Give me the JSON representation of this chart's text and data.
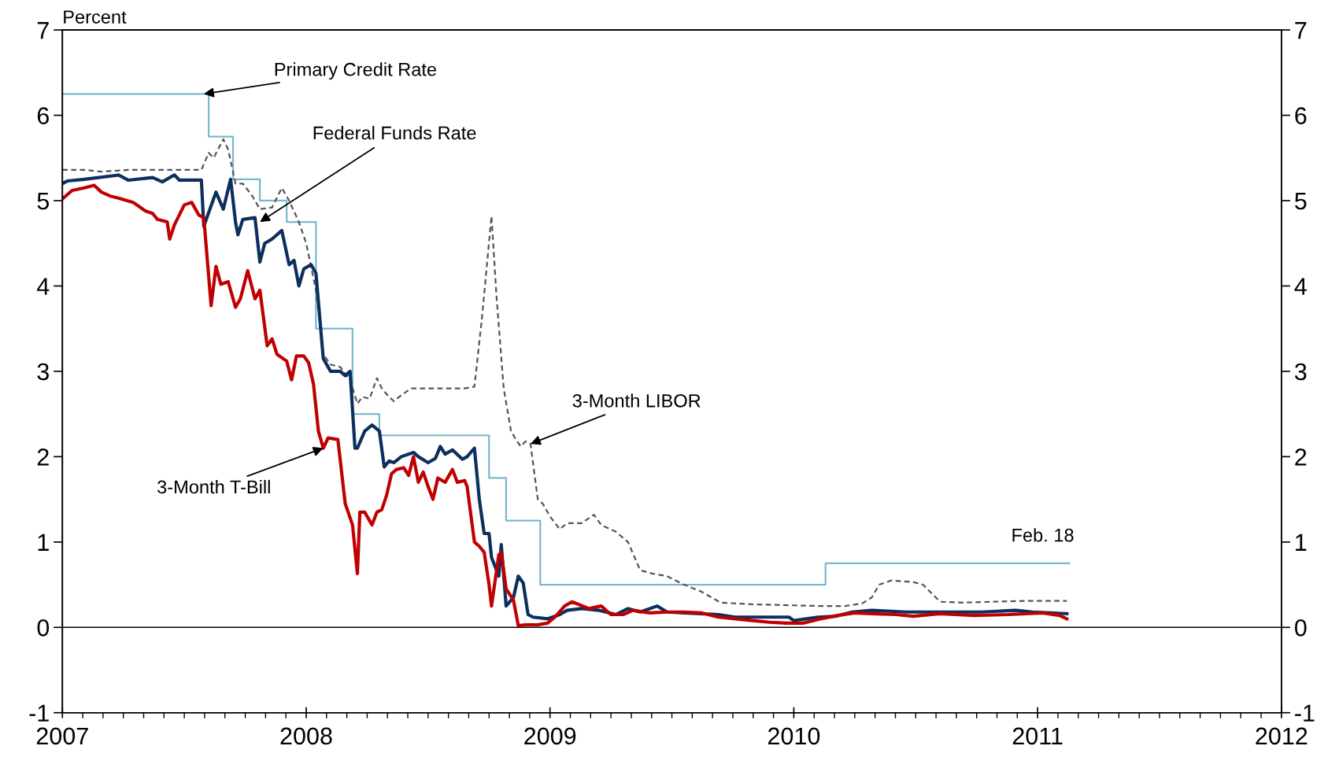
{
  "chart_data": {
    "type": "line",
    "ylabel": "Percent",
    "xlim": [
      2007,
      2012
    ],
    "xticks": [
      2007,
      2008,
      2009,
      2010,
      2011,
      2012
    ],
    "ylim": [
      -1,
      7
    ],
    "yticks": [
      -1,
      0,
      1,
      2,
      3,
      4,
      5,
      6,
      7
    ],
    "y2lim": [
      -1,
      7
    ],
    "y2ticks": [
      -1,
      0,
      1,
      2,
      3,
      4,
      5,
      6,
      7
    ],
    "grid": false,
    "legend": false,
    "marker": "none",
    "ref_lines": [
      {
        "axis": "y",
        "value": 0,
        "color": "#000000"
      }
    ],
    "series": [
      {
        "type": "step",
        "color": "#7ab8d0",
        "x": [
          2007.0,
          2007.6,
          2007.7,
          2007.81,
          2007.92,
          2008.04,
          2008.19,
          2008.3,
          2008.75,
          2008.82,
          2008.96,
          2010.13,
          2011.13
        ],
        "values": [
          6.25,
          5.75,
          5.25,
          5.0,
          4.75,
          3.5,
          2.5,
          2.25,
          1.75,
          1.25,
          0.5,
          0.75,
          0.75
        ]
      },
      {
        "color": "#555555",
        "line_style": "dashed",
        "x": [
          2007.0,
          2007.09,
          2007.16,
          2007.27,
          2007.44,
          2007.57,
          2007.6,
          2007.62,
          2007.66,
          2007.68,
          2007.71,
          2007.74,
          2007.78,
          2007.81,
          2007.86,
          2007.9,
          2007.93,
          2007.97,
          2008.0,
          2008.04,
          2008.07,
          2008.1,
          2008.14,
          2008.18,
          2008.21,
          2008.23,
          2008.26,
          2008.29,
          2008.31,
          2008.34,
          2008.36,
          2008.39,
          2008.43,
          2008.5,
          2008.57,
          2008.65,
          2008.69,
          2008.72,
          2008.76,
          2008.78,
          2008.81,
          2008.84,
          2008.86,
          2008.88,
          2008.9,
          2008.92,
          2008.95,
          2008.97,
          2009.0,
          2009.04,
          2009.07,
          2009.13,
          2009.18,
          2009.21,
          2009.27,
          2009.32,
          2009.37,
          2009.42,
          2009.48,
          2009.55,
          2009.62,
          2009.7,
          2009.83,
          2009.97,
          2010.11,
          2010.21,
          2010.28,
          2010.32,
          2010.35,
          2010.4,
          2010.49,
          2010.53,
          2010.6,
          2010.7,
          2010.81,
          2010.95,
          2011.12
        ],
        "values": [
          5.36,
          5.36,
          5.34,
          5.36,
          5.36,
          5.36,
          5.56,
          5.5,
          5.72,
          5.6,
          5.2,
          5.2,
          5.05,
          4.9,
          4.92,
          5.15,
          5.0,
          4.75,
          4.5,
          3.95,
          3.2,
          3.08,
          3.05,
          2.9,
          2.62,
          2.7,
          2.68,
          2.92,
          2.8,
          2.7,
          2.65,
          2.72,
          2.8,
          2.8,
          2.8,
          2.8,
          2.82,
          3.6,
          4.82,
          3.9,
          2.8,
          2.3,
          2.2,
          2.12,
          2.18,
          2.15,
          1.5,
          1.45,
          1.3,
          1.15,
          1.22,
          1.22,
          1.32,
          1.2,
          1.12,
          1.0,
          0.67,
          0.63,
          0.6,
          0.5,
          0.42,
          0.29,
          0.27,
          0.26,
          0.25,
          0.25,
          0.28,
          0.35,
          0.5,
          0.55,
          0.53,
          0.5,
          0.3,
          0.29,
          0.3,
          0.31,
          0.31
        ]
      },
      {
        "color": "#0d2f5e",
        "x": [
          2007.0,
          2007.02,
          2007.09,
          2007.23,
          2007.27,
          2007.37,
          2007.41,
          2007.44,
          2007.46,
          2007.48,
          2007.57,
          2007.58,
          2007.63,
          2007.66,
          2007.69,
          2007.71,
          2007.72,
          2007.74,
          2007.79,
          2007.81,
          2007.83,
          2007.86,
          2007.9,
          2007.93,
          2007.95,
          2007.97,
          2007.99,
          2008.02,
          2008.04,
          2008.07,
          2008.1,
          2008.14,
          2008.16,
          2008.18,
          2008.2,
          2008.21,
          2008.24,
          2008.27,
          2008.3,
          2008.32,
          2008.34,
          2008.36,
          2008.39,
          2008.44,
          2008.46,
          2008.5,
          2008.53,
          2008.55,
          2008.57,
          2008.6,
          2008.64,
          2008.66,
          2008.69,
          2008.71,
          2008.73,
          2008.75,
          2008.76,
          2008.79,
          2008.8,
          2008.82,
          2008.85,
          2008.87,
          2008.89,
          2008.91,
          2008.93,
          2008.99,
          2009.04,
          2009.07,
          2009.13,
          2009.2,
          2009.27,
          2009.32,
          2009.37,
          2009.44,
          2009.48,
          2009.55,
          2009.69,
          2009.76,
          2009.9,
          2009.98,
          2010.0,
          2010.1,
          2010.17,
          2010.24,
          2010.32,
          2010.46,
          2010.6,
          2010.77,
          2010.91,
          2010.98,
          2011.05,
          2011.12
        ],
        "values": [
          5.2,
          5.23,
          5.25,
          5.3,
          5.24,
          5.27,
          5.22,
          5.27,
          5.3,
          5.24,
          5.24,
          4.7,
          5.1,
          4.9,
          5.25,
          4.75,
          4.6,
          4.78,
          4.8,
          4.28,
          4.5,
          4.55,
          4.65,
          4.25,
          4.3,
          4.0,
          4.2,
          4.25,
          4.15,
          3.15,
          3.0,
          3.0,
          2.95,
          3.0,
          2.1,
          2.1,
          2.3,
          2.37,
          2.3,
          1.88,
          1.95,
          1.93,
          2.0,
          2.05,
          2.0,
          1.93,
          1.98,
          2.12,
          2.03,
          2.08,
          1.97,
          2.0,
          2.1,
          1.5,
          1.1,
          1.1,
          0.82,
          0.6,
          0.97,
          0.25,
          0.35,
          0.6,
          0.52,
          0.15,
          0.12,
          0.1,
          0.15,
          0.2,
          0.22,
          0.2,
          0.15,
          0.22,
          0.18,
          0.25,
          0.18,
          0.17,
          0.15,
          0.12,
          0.12,
          0.12,
          0.08,
          0.12,
          0.13,
          0.18,
          0.2,
          0.18,
          0.18,
          0.18,
          0.2,
          0.18,
          0.17,
          0.16
        ]
      },
      {
        "color": "#c00000",
        "x": [
          2007.0,
          2007.04,
          2007.09,
          2007.13,
          2007.16,
          2007.2,
          2007.23,
          2007.29,
          2007.34,
          2007.37,
          2007.39,
          2007.43,
          2007.44,
          2007.46,
          2007.5,
          2007.53,
          2007.56,
          2007.58,
          2007.61,
          2007.63,
          2007.65,
          2007.68,
          2007.71,
          2007.73,
          2007.76,
          2007.79,
          2007.81,
          2007.84,
          2007.86,
          2007.88,
          2007.92,
          2007.94,
          2007.96,
          2007.99,
          2008.01,
          2008.03,
          2008.05,
          2008.07,
          2008.09,
          2008.13,
          2008.16,
          2008.19,
          2008.21,
          2008.22,
          2008.24,
          2008.27,
          2008.29,
          2008.31,
          2008.33,
          2008.35,
          2008.37,
          2008.4,
          2008.42,
          2008.44,
          2008.46,
          2008.48,
          2008.5,
          2008.52,
          2008.54,
          2008.57,
          2008.6,
          2008.62,
          2008.65,
          2008.66,
          2008.69,
          2008.71,
          2008.73,
          2008.75,
          2008.76,
          2008.79,
          2008.8,
          2008.82,
          2008.85,
          2008.87,
          2008.9,
          2008.95,
          2008.99,
          2009.02,
          2009.06,
          2009.09,
          2009.16,
          2009.21,
          2009.25,
          2009.3,
          2009.34,
          2009.41,
          2009.48,
          2009.55,
          2009.62,
          2009.69,
          2009.76,
          2009.83,
          2009.9,
          2009.97,
          2010.04,
          2010.11,
          2010.18,
          2010.25,
          2010.32,
          2010.42,
          2010.49,
          2010.6,
          2010.74,
          2010.88,
          2011.02,
          2011.09,
          2011.12
        ],
        "values": [
          5.02,
          5.12,
          5.15,
          5.18,
          5.1,
          5.05,
          5.03,
          4.98,
          4.88,
          4.85,
          4.78,
          4.75,
          4.55,
          4.72,
          4.95,
          4.98,
          4.83,
          4.8,
          3.77,
          4.23,
          4.02,
          4.05,
          3.75,
          3.85,
          4.18,
          3.85,
          3.95,
          3.3,
          3.38,
          3.2,
          3.12,
          2.9,
          3.18,
          3.18,
          3.1,
          2.85,
          2.3,
          2.1,
          2.22,
          2.2,
          1.45,
          1.2,
          0.63,
          1.35,
          1.35,
          1.2,
          1.35,
          1.38,
          1.55,
          1.8,
          1.85,
          1.87,
          1.78,
          2.0,
          1.7,
          1.82,
          1.65,
          1.5,
          1.75,
          1.7,
          1.85,
          1.7,
          1.72,
          1.65,
          1.0,
          0.95,
          0.88,
          0.5,
          0.25,
          0.85,
          0.88,
          0.45,
          0.32,
          0.02,
          0.03,
          0.03,
          0.05,
          0.12,
          0.25,
          0.3,
          0.22,
          0.25,
          0.15,
          0.15,
          0.2,
          0.17,
          0.18,
          0.18,
          0.17,
          0.12,
          0.1,
          0.08,
          0.06,
          0.05,
          0.05,
          0.1,
          0.14,
          0.17,
          0.16,
          0.15,
          0.13,
          0.16,
          0.14,
          0.15,
          0.17,
          0.14,
          0.1
        ]
      }
    ],
    "annotations": [
      {
        "text": "Primary Credit Rate",
        "x": 2007.58,
        "y": 6.25
      },
      {
        "text": "Federal Funds Rate",
        "x": 2007.81,
        "y": 4.75
      },
      {
        "text": "3-Month LIBOR",
        "x": 2008.92,
        "y": 2.15
      },
      {
        "text": "3-Month T-Bill",
        "x": 2008.07,
        "y": 2.1
      },
      "Feb. 18"
    ]
  }
}
